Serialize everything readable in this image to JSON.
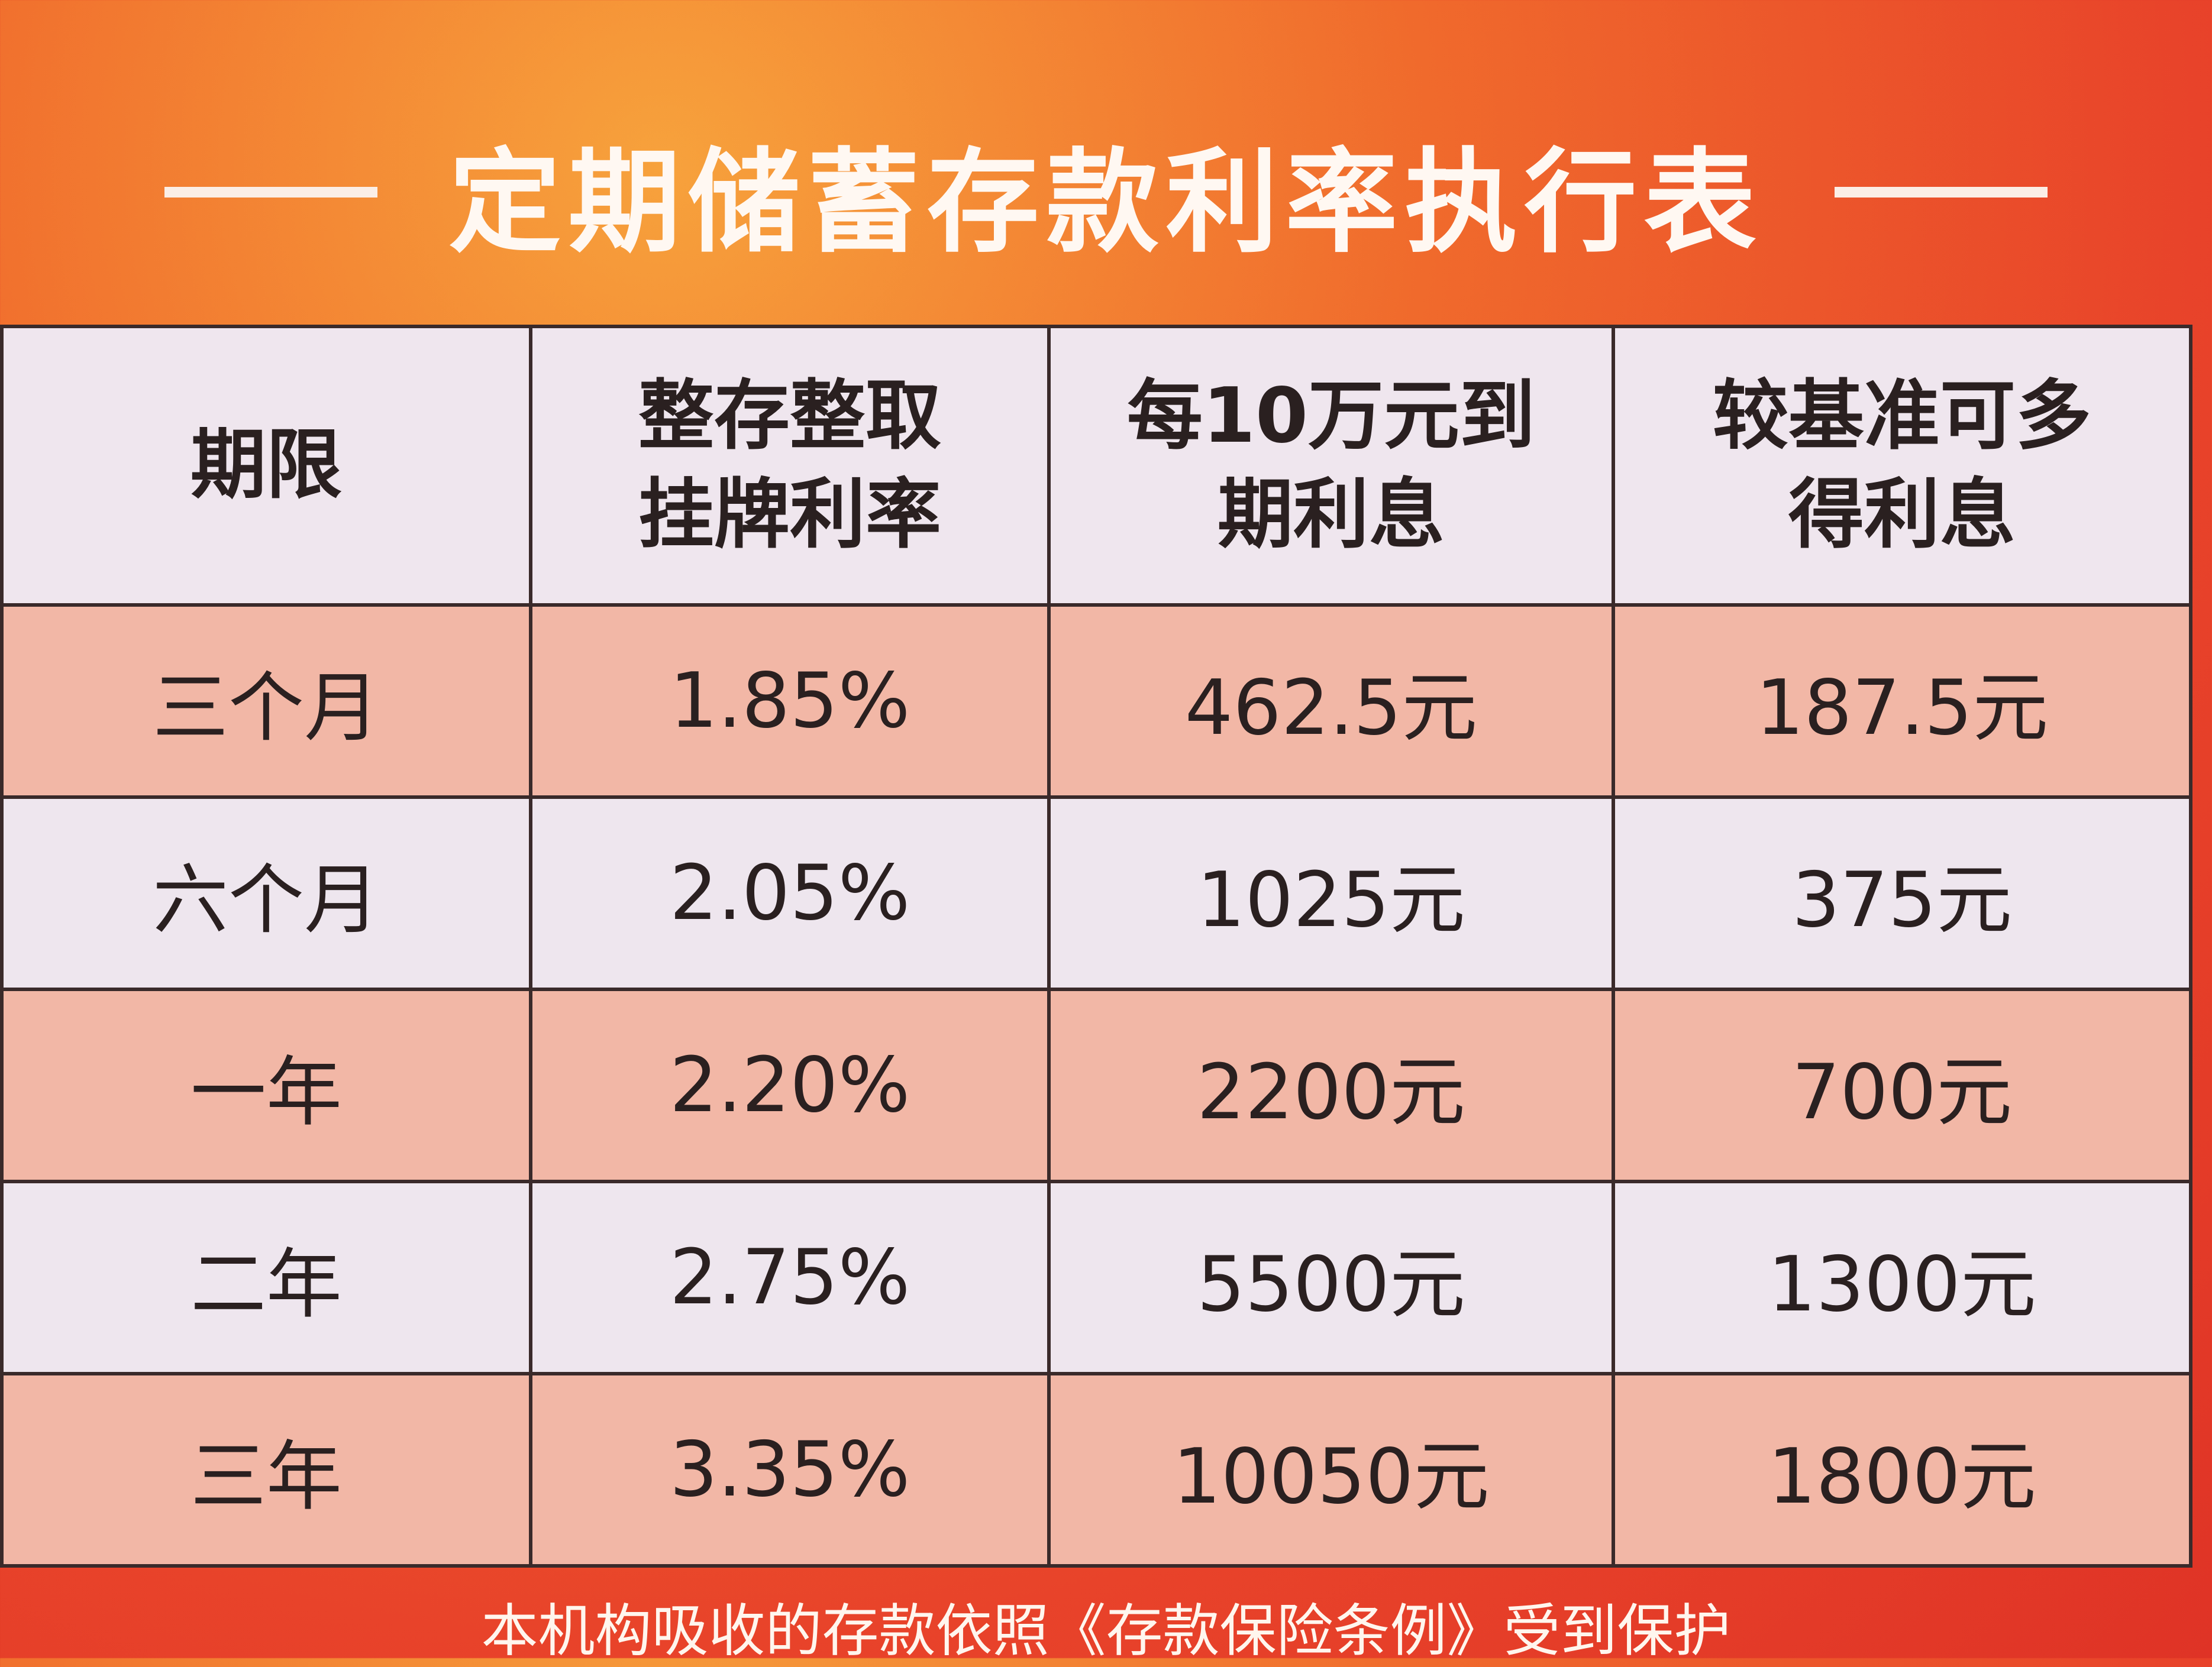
{
  "header": {
    "title": "定期储蓄存款利率执行表"
  },
  "table": {
    "columns": [
      [
        "期限"
      ],
      [
        "整存整取",
        "挂牌利率"
      ],
      [
        "每10万元到",
        "期利息"
      ],
      [
        "较基准可多",
        "得利息"
      ]
    ],
    "rows": [
      [
        "三个月",
        "1.85%",
        "462.5元",
        "187.5元"
      ],
      [
        "六个月",
        "2.05%",
        "1025元",
        "375元"
      ],
      [
        "一年",
        "2.20%",
        "2200元",
        "700元"
      ],
      [
        "二年",
        "2.75%",
        "5500元",
        "1300元"
      ],
      [
        "三年",
        "3.35%",
        "10050元",
        "1800元"
      ]
    ]
  },
  "footer": {
    "text": "本机构吸收的存款依照《存款保险条例》受到保护"
  }
}
